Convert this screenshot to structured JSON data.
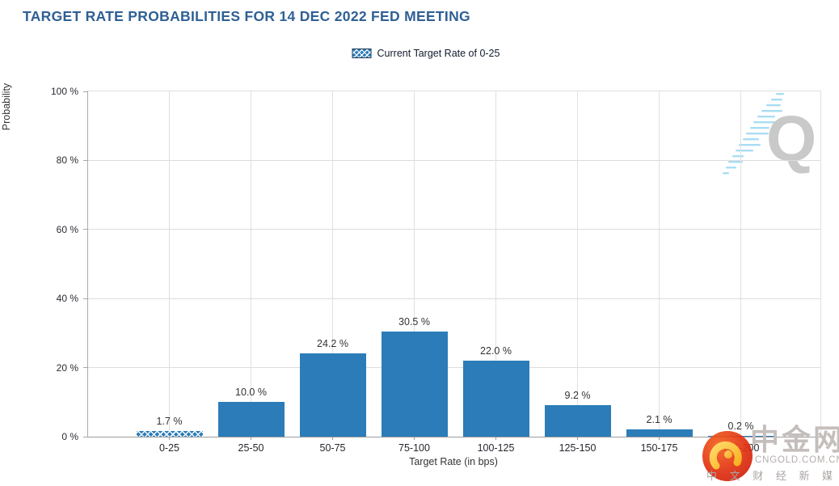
{
  "title": "TARGET RATE PROBABILITIES FOR 14 DEC 2022 FED MEETING",
  "legend": {
    "label": "Current Target Rate of 0-25"
  },
  "chart_data": {
    "type": "bar",
    "title": "TARGET RATE PROBABILITIES FOR 14 DEC 2022 FED MEETING",
    "categories": [
      "0-25",
      "25-50",
      "50-75",
      "75-100",
      "100-125",
      "125-150",
      "150-175",
      "175-200"
    ],
    "values": [
      1.7,
      10.0,
      24.2,
      30.5,
      22.0,
      9.2,
      2.1,
      0.2
    ],
    "value_labels": [
      "1.7 %",
      "10.0 %",
      "24.2 %",
      "30.5 %",
      "22.0 %",
      "9.2 %",
      "2.1 %",
      "0.2 %"
    ],
    "xlabel": "Target Rate (in bps)",
    "ylabel": "Probability",
    "ylim": [
      0,
      100
    ],
    "yticks": [
      "0 %",
      "20 %",
      "40 %",
      "60 %",
      "80 %",
      "100 %"
    ],
    "grid": true,
    "legend_entries": [
      "Current Target Rate of 0-25"
    ],
    "legend_position": "top-center",
    "highlighted_category": "0-25",
    "hatched_bar_index": 0,
    "bar_color": "#2b7cb8",
    "hatch_color": "#ffffff"
  },
  "colors": {
    "accent_blue": "#2b7cb8",
    "title_blue": "#2f6093",
    "watermark_gray": "#c9c9c9"
  },
  "watermark": {
    "letter": "Q"
  },
  "logo": {
    "name": "中金网",
    "domain": "CNGOLD.COM.CN",
    "tagline": "中 文 财 经 新 媒 体"
  }
}
